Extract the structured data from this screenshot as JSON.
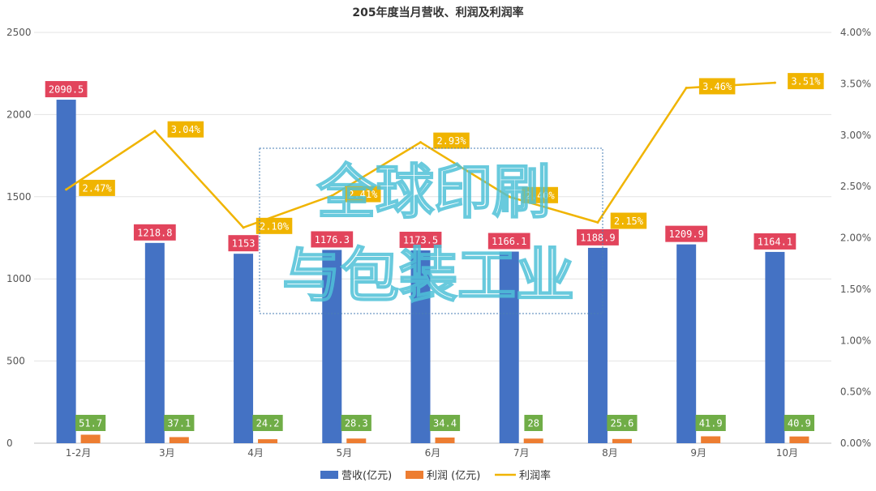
{
  "chart_data": {
    "type": "bar",
    "title": "205年度当月营收、利润及利润率",
    "categories": [
      "1-2月",
      "3月",
      "4月",
      "5月",
      "6月",
      "7月",
      "8月",
      "9月",
      "10月"
    ],
    "series": [
      {
        "name": "营收(亿元)",
        "type": "bar",
        "axis": "left",
        "color": "#4472c4",
        "values": [
          2090.5,
          1218.8,
          1153,
          1176.3,
          1173.5,
          1166.1,
          1188.9,
          1209.9,
          1164.1
        ],
        "labels": [
          "2090.5",
          "1218.8",
          "1153",
          "1176.3",
          "1173.5",
          "1166.1",
          "1188.9",
          "1209.9",
          "1164.1"
        ]
      },
      {
        "name": "利润 (亿元)",
        "type": "bar",
        "axis": "left",
        "color": "#ed7d31",
        "values": [
          51.7,
          37.1,
          24.2,
          28.3,
          34.4,
          28,
          25.6,
          41.9,
          40.9
        ],
        "labels": [
          "51.7",
          "37.1",
          "24.2",
          "28.3",
          "34.4",
          "28",
          "25.6",
          "41.9",
          "40.9"
        ]
      },
      {
        "name": "利润率",
        "type": "line",
        "axis": "right",
        "color": "#f0b400",
        "values": [
          2.47,
          3.04,
          2.1,
          2.41,
          2.93,
          2.4,
          2.15,
          3.46,
          3.51
        ],
        "labels": [
          "2.47%",
          "3.04%",
          "2.10%",
          "2.41%",
          "2.93%",
          "2.40%",
          "2.15%",
          "3.46%",
          "3.51%"
        ]
      }
    ],
    "y_left": {
      "min": 0,
      "max": 2500,
      "ticks": [
        "0",
        "500",
        "1000",
        "1500",
        "2000",
        "2500"
      ]
    },
    "y_right": {
      "min": 0,
      "max": 4,
      "unit": "%",
      "ticks": [
        "0.00%",
        "0.50%",
        "1.00%",
        "1.50%",
        "2.00%",
        "2.50%",
        "3.00%",
        "3.50%",
        "4.00%"
      ]
    },
    "grid": true,
    "legend_position": "bottom",
    "revenue_label_color": "#e2445c",
    "profit_label_color": "#70ad47",
    "rate_label_color": "#f0b400"
  },
  "watermark": {
    "line1": "全球印刷",
    "line2": "与包装工业"
  }
}
